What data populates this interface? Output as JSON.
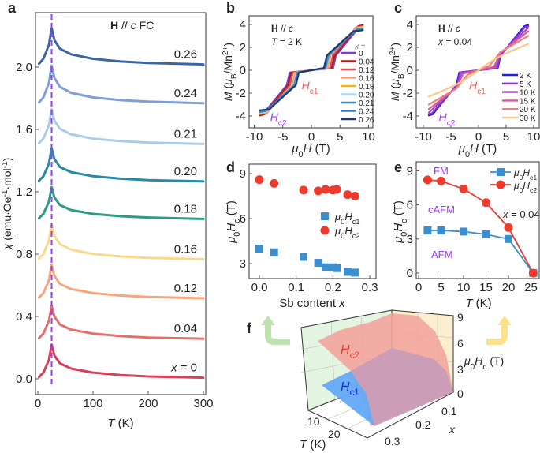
{
  "panel_labels": {
    "a": "a",
    "b": "b",
    "c": "c",
    "d": "d",
    "e": "e",
    "f": "f"
  },
  "colors": {
    "dashed_line": "#9b3cf0",
    "hc1": "#3b8fce",
    "hc2": "#ee3b2e",
    "phase_text": "#9b3cf0"
  },
  "chart_data": [
    {
      "type": "line",
      "annotation": "**H** // *c*   FC",
      "xlabel": "*T* (K)",
      "ylabel": "*χ* (emu·Oe^{-1}·mol^{-1})",
      "xlim": [
        0,
        300
      ],
      "xticks": [
        "0",
        "100",
        "200",
        "300"
      ],
      "yticks": [
        "0.0",
        "0.4",
        "0.8",
        "1.2",
        "1.6",
        "2.0"
      ],
      "reference_line": {
        "x": 25,
        "style": "dashed",
        "color": "#9b3cf0"
      },
      "x": [
        2,
        10,
        20,
        25,
        30,
        40,
        60,
        100,
        150,
        200,
        300
      ],
      "series": [
        {
          "label": "*x* = 0",
          "color": "#d8405a",
          "values": [
            0.011,
            0.04,
            0.121,
            0.22,
            0.15,
            0.099,
            0.066,
            0.04,
            0.024,
            0.015,
            0.007
          ]
        },
        {
          "label": "0.04",
          "color": "#e2716c",
          "values": [
            0.261,
            0.29,
            0.371,
            0.47,
            0.4,
            0.349,
            0.316,
            0.29,
            0.274,
            0.265,
            0.257
          ]
        },
        {
          "label": "0.12",
          "color": "#f7a67c",
          "values": [
            0.521,
            0.55,
            0.631,
            0.73,
            0.66,
            0.609,
            0.576,
            0.55,
            0.534,
            0.525,
            0.517
          ]
        },
        {
          "label": "0.16",
          "color": "#fbd98c",
          "values": [
            0.772,
            0.801,
            0.887,
            0.99,
            0.916,
            0.864,
            0.829,
            0.801,
            0.785,
            0.776,
            0.767
          ]
        },
        {
          "label": "0.18",
          "color": "#2b9c88",
          "values": [
            1.031,
            1.058,
            1.136,
            1.23,
            1.163,
            1.115,
            1.083,
            1.058,
            1.043,
            1.035,
            1.026
          ]
        },
        {
          "label": "0.20",
          "color": "#2a8aa6",
          "values": [
            1.271,
            1.3,
            1.381,
            1.48,
            1.41,
            1.359,
            1.326,
            1.3,
            1.284,
            1.275,
            1.267
          ]
        },
        {
          "label": "0.21",
          "color": "#a9cde6",
          "values": [
            1.512,
            1.541,
            1.627,
            1.73,
            1.656,
            1.604,
            1.569,
            1.541,
            1.525,
            1.516,
            1.507
          ]
        },
        {
          "label": "0.24",
          "color": "#7f9fd2",
          "values": [
            1.773,
            1.805,
            1.898,
            2.01,
            1.93,
            1.873,
            1.835,
            1.805,
            1.788,
            1.778,
            1.768
          ]
        },
        {
          "label": "0.26",
          "color": "#3a66a8",
          "values": [
            2.022,
            2.053,
            2.142,
            2.25,
            2.173,
            2.118,
            2.082,
            2.053,
            2.036,
            2.027,
            2.017
          ]
        }
      ]
    },
    {
      "type": "line",
      "annotation": [
        "**H** // *c*",
        "*T* = 2 K"
      ],
      "xlabel": "*μ*_{0}*H* (T)",
      "ylabel": "*M* (*μ*_{B}/Mn^{2+})",
      "xlim": [
        -10,
        10
      ],
      "ylim": [
        -5,
        5
      ],
      "xticks": [
        "-10",
        "-5",
        "0",
        "5",
        "10"
      ],
      "yticks": [
        "-4",
        "-2",
        "0",
        "2",
        "4"
      ],
      "legend_title": "*x* =",
      "markers": {
        "hc1": "*H*_{c1}",
        "hc2": "*H*_{c2}"
      },
      "series": [
        {
          "label": "0",
          "color": "#7b3fc4",
          "points": [
            [
              -9,
              -3.95
            ],
            [
              -8.5,
              -3.85
            ],
            [
              -4.3,
              -1.3
            ],
            [
              -3.8,
              -0.2
            ],
            [
              0,
              0
            ],
            [
              3.8,
              0.2
            ],
            [
              4.3,
              1.3
            ],
            [
              8.5,
              3.85
            ],
            [
              9,
              3.95
            ]
          ]
        },
        {
          "label": "0.04",
          "color": "#b01c1c",
          "points": [
            [
              -9,
              -3.95
            ],
            [
              -8.2,
              -3.85
            ],
            [
              -4.05,
              -1.3
            ],
            [
              -3.55,
              -0.2
            ],
            [
              0,
              0
            ],
            [
              3.55,
              0.2
            ],
            [
              4.05,
              1.3
            ],
            [
              8.2,
              3.85
            ],
            [
              9,
              3.95
            ]
          ]
        },
        {
          "label": "0.12",
          "color": "#e05252",
          "points": [
            [
              -9,
              -3.85
            ],
            [
              -7.8,
              -3.75
            ],
            [
              -3.75,
              -1.3
            ],
            [
              -3.25,
              -0.2
            ],
            [
              0,
              0
            ],
            [
              3.25,
              0.2
            ],
            [
              3.75,
              1.3
            ],
            [
              7.8,
              3.75
            ],
            [
              9,
              3.85
            ]
          ]
        },
        {
          "label": "0.16",
          "color": "#f5a074",
          "points": [
            [
              -9,
              -3.8
            ],
            [
              -7.8,
              -3.7
            ],
            [
              -3.35,
              -1.3
            ],
            [
              -2.85,
              -0.2
            ],
            [
              0,
              0
            ],
            [
              2.85,
              0.2
            ],
            [
              3.35,
              1.3
            ],
            [
              7.8,
              3.7
            ],
            [
              9,
              3.8
            ]
          ]
        },
        {
          "label": "0.18",
          "color": "#f5b800",
          "points": [
            [
              -9,
              -3.75
            ],
            [
              -7.9,
              -3.65
            ],
            [
              -3.05,
              -1.3
            ],
            [
              -2.55,
              -0.2
            ],
            [
              0,
              0
            ],
            [
              2.55,
              0.2
            ],
            [
              3.05,
              1.3
            ],
            [
              7.9,
              3.65
            ],
            [
              9,
              3.75
            ]
          ]
        },
        {
          "label": "0.20",
          "color": "#a8d8f0",
          "points": [
            [
              -9,
              -3.7
            ],
            [
              -7.85,
              -3.6
            ],
            [
              -3.05,
              -1.3
            ],
            [
              -2.55,
              -0.2
            ],
            [
              0,
              0
            ],
            [
              2.55,
              0.2
            ],
            [
              3.05,
              1.3
            ],
            [
              7.85,
              3.6
            ],
            [
              9,
              3.7
            ]
          ]
        },
        {
          "label": "0.21",
          "color": "#3a8cc8",
          "points": [
            [
              -9,
              -3.65
            ],
            [
              -7.9,
              -3.55
            ],
            [
              -3.0,
              -1.3
            ],
            [
              -2.5,
              -0.2
            ],
            [
              0,
              0
            ],
            [
              2.5,
              0.2
            ],
            [
              3.0,
              1.3
            ],
            [
              7.9,
              3.55
            ],
            [
              9,
              3.65
            ]
          ]
        },
        {
          "label": "0.24",
          "color": "#3a78d8",
          "points": [
            [
              -9,
              -3.55
            ],
            [
              -7.45,
              -3.45
            ],
            [
              -2.75,
              -1.3
            ],
            [
              -2.25,
              -0.2
            ],
            [
              0,
              0
            ],
            [
              2.25,
              0.2
            ],
            [
              2.75,
              1.3
            ],
            [
              7.45,
              3.45
            ],
            [
              9,
              3.55
            ]
          ]
        },
        {
          "label": "0.26",
          "color": "#1f3a70",
          "points": [
            [
              -9,
              -3.5
            ],
            [
              -7.35,
              -3.4
            ],
            [
              -2.7,
              -1.3
            ],
            [
              -2.2,
              -0.2
            ],
            [
              0,
              0
            ],
            [
              2.2,
              0.2
            ],
            [
              2.7,
              1.3
            ],
            [
              7.35,
              3.4
            ],
            [
              9,
              3.5
            ]
          ]
        }
      ]
    },
    {
      "type": "line",
      "annotation": [
        "**H** // *c*",
        "*x* = 0.04"
      ],
      "xlabel": "*μ*_{0}*H* (T)",
      "ylabel": "*M* (*μ*_{B}/Mn^{2+})",
      "xlim": [
        -10,
        10
      ],
      "ylim": [
        -5,
        5
      ],
      "xticks": [
        "-10",
        "-5",
        "0",
        "5",
        "10"
      ],
      "yticks": [
        "-4",
        "-2",
        "0",
        "2",
        "4"
      ],
      "markers": {
        "hc1": "*H*_{c1}",
        "hc2": "*H*_{c2}"
      },
      "series": [
        {
          "label": "2 K",
          "color": "#1f1fe0",
          "points": [
            [
              -9,
              -3.95
            ],
            [
              -8.3,
              -3.85
            ],
            [
              -4.0,
              -1.3
            ],
            [
              -3.5,
              -0.2
            ],
            [
              0,
              0
            ],
            [
              3.5,
              0.2
            ],
            [
              4.0,
              1.3
            ],
            [
              8.3,
              3.85
            ],
            [
              9,
              3.95
            ]
          ]
        },
        {
          "label": "5 K",
          "color": "#8a2be2",
          "points": [
            [
              -9,
              -3.85
            ],
            [
              -8.4,
              -3.75
            ],
            [
              -3.9,
              -1.3
            ],
            [
              -3.4,
              -0.2
            ],
            [
              0,
              0
            ],
            [
              3.4,
              0.2
            ],
            [
              3.9,
              1.3
            ],
            [
              8.4,
              3.75
            ],
            [
              9,
              3.85
            ]
          ]
        },
        {
          "label": "10 K",
          "color": "#b040d0",
          "points": [
            [
              -9,
              -3.7
            ],
            [
              -3.9,
              -1.4
            ],
            [
              -3.1,
              -0.25
            ],
            [
              0,
              0
            ],
            [
              3.1,
              0.25
            ],
            [
              3.9,
              1.4
            ],
            [
              9,
              3.7
            ]
          ]
        },
        {
          "label": "15 K",
          "color": "#d06090",
          "points": [
            [
              -9,
              -3.4
            ],
            [
              -3.9,
              -1.5
            ],
            [
              -2.8,
              -0.3
            ],
            [
              0,
              0
            ],
            [
              2.8,
              0.3
            ],
            [
              3.9,
              1.5
            ],
            [
              9,
              3.4
            ]
          ]
        },
        {
          "label": "20 K",
          "color": "#ee7f7f",
          "points": [
            [
              -9,
              -3.0
            ],
            [
              -4.0,
              -1.6
            ],
            [
              -2.0,
              -0.4
            ],
            [
              0,
              0
            ],
            [
              2.0,
              0.4
            ],
            [
              4.0,
              1.6
            ],
            [
              9,
              3.0
            ]
          ]
        },
        {
          "label": "30 K",
          "color": "#fbc890",
          "points": [
            [
              -9,
              -2.3
            ],
            [
              -6,
              -1.7
            ],
            [
              -3,
              -1.0
            ],
            [
              -1,
              -0.35
            ],
            [
              0,
              0
            ],
            [
              1,
              0.35
            ],
            [
              3,
              1.0
            ],
            [
              6,
              1.7
            ],
            [
              9,
              2.3
            ]
          ]
        }
      ]
    },
    {
      "type": "scatter",
      "xlabel": "Sb content *x*",
      "ylabel": "*μ*_{0}*H*_{c} (T)",
      "xlim": [
        -0.02,
        0.3
      ],
      "xticks": [
        "0.0",
        "0.1",
        "0.2",
        "0.3"
      ],
      "yticks": [
        "3",
        "6",
        "9"
      ],
      "x": [
        0,
        0.04,
        0.12,
        0.16,
        0.18,
        0.2,
        0.21,
        0.24,
        0.26
      ],
      "series": [
        {
          "name": "*μ*_{0}*H*_{c1}",
          "color": "#3b8fce",
          "marker": "square",
          "values": [
            4.0,
            3.75,
            3.45,
            3.05,
            2.75,
            2.75,
            2.7,
            2.45,
            2.4
          ]
        },
        {
          "name": "*μ*_{0}*H*_{c2}",
          "color": "#ee3b2e",
          "marker": "circle",
          "values": [
            8.6,
            8.35,
            7.9,
            7.85,
            7.95,
            7.9,
            7.95,
            7.6,
            7.5
          ]
        }
      ]
    },
    {
      "type": "line",
      "xlabel": "*T* (K)",
      "ylabel": "*μ*_{0}*H*_{c} (T)",
      "xticks": [
        "0",
        "5",
        "10",
        "15",
        "20",
        "25"
      ],
      "yticks": [
        "0",
        "3",
        "6",
        "9"
      ],
      "annotations": {
        "fm": "FM",
        "cafm": "cAFM",
        "afm": "AFM",
        "composition": "*x* = 0.04"
      },
      "x": [
        2,
        5,
        10,
        15,
        20,
        25.5
      ],
      "series": [
        {
          "name": "*μ*_{0}*H*_{c1}",
          "color": "#3b8fce",
          "marker": "square",
          "values": [
            3.75,
            3.75,
            3.65,
            3.4,
            3.0,
            0
          ]
        },
        {
          "name": "*μ*_{0}*H*_{c2}",
          "color": "#ee3b2e",
          "marker": "circle",
          "values": [
            8.2,
            8.1,
            7.4,
            6.2,
            4.0,
            0
          ]
        }
      ]
    },
    {
      "type": "surface",
      "zlabel": "*μ*_{0}*H*_{c} (T)",
      "xlabel": "*x*",
      "ylabel": "*T* (K)",
      "zticks": [
        "0",
        "3",
        "6",
        "9"
      ],
      "xticks": [
        "0.1",
        "0.2",
        "0.3"
      ],
      "yticks": [
        "10",
        "20"
      ],
      "surfaces": {
        "hc2": "*H*_{c2}",
        "hc1": "*H*_{c1}"
      },
      "surface_colors": {
        "hc2": "#f2a59c",
        "hc1": "#64aaf5",
        "overlap": "#c79bb8"
      },
      "wall_colors": {
        "left": "#e3f4e0",
        "right": "#fcefcf"
      },
      "arrow_colors": {
        "left": "#bfe3b0",
        "right": "#fde08a"
      }
    }
  ]
}
